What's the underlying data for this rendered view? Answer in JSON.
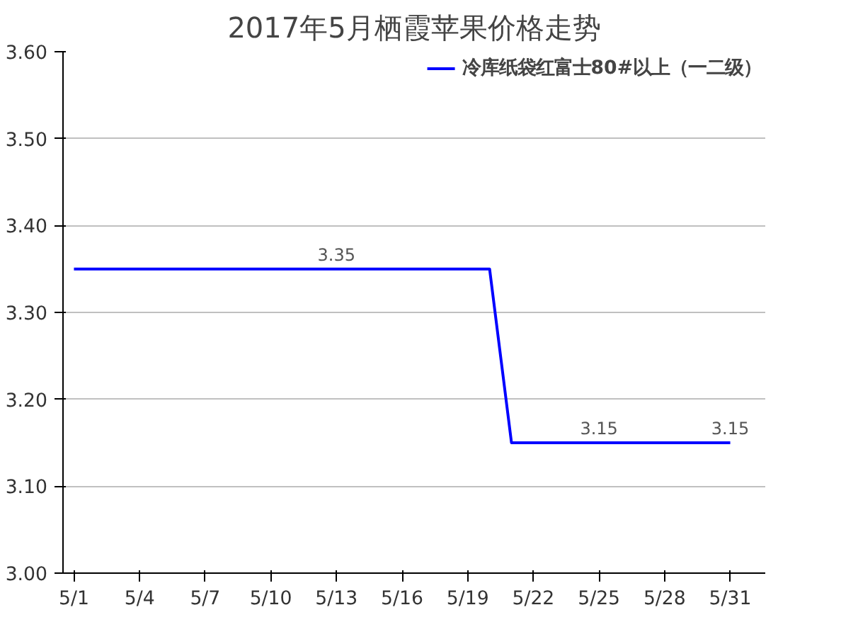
{
  "chart_data": {
    "type": "line",
    "title": "2017年5月栖霞苹果价格走势",
    "categories": [
      "5/1",
      null,
      null,
      "5/4",
      null,
      null,
      "5/7",
      null,
      null,
      "5/10",
      null,
      null,
      "5/13",
      null,
      null,
      "5/16",
      null,
      null,
      "5/19",
      null,
      null,
      "5/22",
      null,
      null,
      "5/25",
      null,
      null,
      "5/28",
      null,
      null,
      "5/31"
    ],
    "series": [
      {
        "name": "冷库纸袋红富士80#以上（一二级）",
        "color": "#0000ff",
        "values": [
          3.35,
          3.35,
          3.35,
          3.35,
          3.35,
          3.35,
          3.35,
          3.35,
          3.35,
          3.35,
          3.35,
          3.35,
          3.35,
          3.35,
          3.35,
          3.35,
          3.35,
          3.35,
          3.35,
          3.35,
          3.15,
          3.15,
          3.15,
          3.15,
          3.15,
          3.15,
          3.15,
          3.15,
          3.15,
          3.15,
          3.15
        ],
        "value_labels": [
          null,
          null,
          null,
          null,
          null,
          null,
          null,
          null,
          null,
          null,
          null,
          null,
          "3.35",
          null,
          null,
          null,
          null,
          null,
          null,
          null,
          null,
          null,
          null,
          null,
          "3.15",
          null,
          null,
          null,
          null,
          null,
          "3.15"
        ]
      }
    ],
    "ylim": [
      3.0,
      3.6
    ],
    "yticks": [
      {
        "value": 3.0,
        "label": "3.00"
      },
      {
        "value": 3.1,
        "label": "3.10"
      },
      {
        "value": 3.2,
        "label": "3.20"
      },
      {
        "value": 3.3,
        "label": "3.30"
      },
      {
        "value": 3.4,
        "label": "3.40"
      },
      {
        "value": 3.5,
        "label": "3.50"
      },
      {
        "value": 3.6,
        "label": "3.60"
      }
    ],
    "grid": "y",
    "legend": "top right",
    "marker": "none",
    "line_style": "solid"
  }
}
